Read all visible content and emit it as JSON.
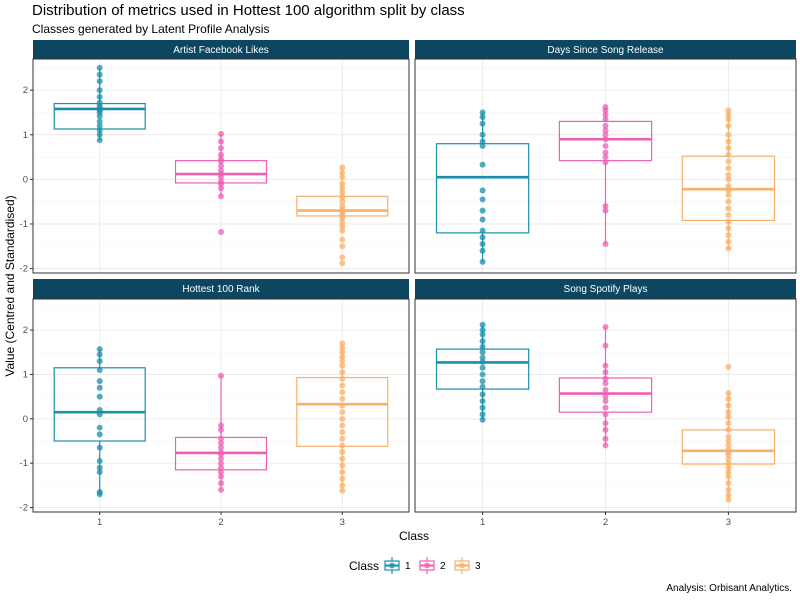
{
  "title": "Distribution of metrics used in Hottest 100 algorithm split by class",
  "subtitle": "Classes generated by Latent Profile Analysis",
  "caption": "Analysis: Orbisant Analytics.",
  "chart_data": {
    "type": "box",
    "xlabel": "Class",
    "ylabel": "Value (Centred and Standardised)",
    "categories": [
      "1",
      "2",
      "3"
    ],
    "ylim": [
      -2.1,
      2.7
    ],
    "yticks": [
      -2,
      -1,
      0,
      1,
      2
    ],
    "grid": true,
    "legend": {
      "title": "Class",
      "position": "bottom",
      "entries": [
        "1",
        "2",
        "3"
      ]
    },
    "colors": {
      "1": "#1a8fab",
      "2": "#ee5fb2",
      "3": "#f8b06a",
      "strip": "#0d4661"
    },
    "panels": [
      {
        "title": "Artist Facebook Likes",
        "boxes": [
          {
            "class": "1",
            "q1": 1.13,
            "median": 1.58,
            "q3": 1.7,
            "whisker_low": 0.88,
            "whisker_high": 2.5
          },
          {
            "class": "2",
            "q1": -0.08,
            "median": 0.12,
            "q3": 0.42,
            "whisker_low": -0.38,
            "whisker_high": 1.02
          },
          {
            "class": "3",
            "q1": -0.82,
            "median": -0.7,
            "q3": -0.38,
            "whisker_low": -1.18,
            "whisker_high": 0.27
          }
        ],
        "points": {
          "1": [
            2.5,
            2.35,
            2.2,
            2.0,
            1.85,
            1.72,
            1.65,
            1.6,
            1.55,
            1.5,
            1.42,
            1.3,
            1.2,
            1.1,
            1.0,
            0.88
          ],
          "2": [
            1.02,
            0.85,
            0.7,
            0.55,
            0.45,
            0.4,
            0.3,
            0.2,
            0.12,
            0.05,
            -0.05,
            -0.1,
            -0.2,
            -0.38,
            -1.18
          ],
          "3": [
            0.27,
            0.15,
            0.05,
            -0.1,
            -0.2,
            -0.3,
            -0.4,
            -0.5,
            -0.6,
            -0.68,
            -0.72,
            -0.78,
            -0.85,
            -0.95,
            -1.05,
            -1.15,
            -1.35,
            -1.5,
            -1.75,
            -1.88
          ]
        }
      },
      {
        "title": "Days Since Song Release",
        "boxes": [
          {
            "class": "1",
            "q1": -1.2,
            "median": 0.05,
            "q3": 0.8,
            "whisker_low": -1.85,
            "whisker_high": 1.5
          },
          {
            "class": "2",
            "q1": 0.42,
            "median": 0.9,
            "q3": 1.3,
            "whisker_low": -1.45,
            "whisker_high": 1.62
          },
          {
            "class": "3",
            "q1": -0.92,
            "median": -0.22,
            "q3": 0.52,
            "whisker_low": -1.55,
            "whisker_high": 1.55
          }
        ],
        "points": {
          "1": [
            1.5,
            1.4,
            1.25,
            1.0,
            0.85,
            0.75,
            0.33,
            -0.25,
            -0.45,
            -0.7,
            -0.9,
            -1.15,
            -1.3,
            -1.45,
            -1.6,
            -1.85
          ],
          "2": [
            1.62,
            1.55,
            1.45,
            1.35,
            1.2,
            1.1,
            1.0,
            0.9,
            0.75,
            0.6,
            0.5,
            0.38,
            -0.6,
            -0.7,
            -1.45
          ],
          "3": [
            1.55,
            1.45,
            1.35,
            1.2,
            1.0,
            0.85,
            0.7,
            0.55,
            0.4,
            0.25,
            0.1,
            0.0,
            -0.15,
            -0.25,
            -0.35,
            -0.5,
            -0.65,
            -0.8,
            -0.95,
            -1.1,
            -1.25,
            -1.4,
            -1.55
          ]
        }
      },
      {
        "title": "Hottest 100 Rank",
        "boxes": [
          {
            "class": "1",
            "q1": -0.5,
            "median": 0.15,
            "q3": 1.15,
            "whisker_low": -1.7,
            "whisker_high": 1.57
          },
          {
            "class": "2",
            "q1": -1.15,
            "median": -0.77,
            "q3": -0.42,
            "whisker_low": -1.6,
            "whisker_high": 0.97
          },
          {
            "class": "3",
            "q1": -0.62,
            "median": 0.33,
            "q3": 0.93,
            "whisker_low": -1.62,
            "whisker_high": 1.7
          }
        ],
        "points": {
          "1": [
            1.57,
            1.45,
            1.3,
            1.1,
            0.85,
            0.7,
            0.5,
            0.2,
            0.1,
            -0.2,
            -0.35,
            -0.65,
            -0.95,
            -1.1,
            -1.2,
            -1.65,
            -1.7
          ],
          "2": [
            0.97,
            -0.15,
            -0.25,
            -0.45,
            -0.55,
            -0.65,
            -0.75,
            -0.8,
            -0.9,
            -1.0,
            -1.1,
            -1.2,
            -1.3,
            -1.45,
            -1.6
          ],
          "3": [
            1.7,
            1.6,
            1.5,
            1.4,
            1.3,
            1.2,
            1.05,
            0.9,
            0.75,
            0.6,
            0.45,
            0.3,
            0.15,
            0.0,
            -0.15,
            -0.3,
            -0.45,
            -0.6,
            -0.75,
            -0.9,
            -1.05,
            -1.2,
            -1.35,
            -1.5,
            -1.62
          ]
        }
      },
      {
        "title": "Song Spotify Plays",
        "boxes": [
          {
            "class": "1",
            "q1": 0.67,
            "median": 1.27,
            "q3": 1.57,
            "whisker_low": -0.02,
            "whisker_high": 2.12
          },
          {
            "class": "2",
            "q1": 0.15,
            "median": 0.57,
            "q3": 0.92,
            "whisker_low": -0.6,
            "whisker_high": 2.07
          },
          {
            "class": "3",
            "q1": -1.02,
            "median": -0.72,
            "q3": -0.25,
            "whisker_low": -1.82,
            "whisker_high": 0.58
          }
        ],
        "points": {
          "1": [
            2.12,
            2.0,
            1.9,
            1.75,
            1.62,
            1.5,
            1.38,
            1.28,
            1.15,
            1.0,
            0.85,
            0.72,
            0.55,
            0.4,
            0.25,
            0.1,
            -0.02
          ],
          "2": [
            2.07,
            1.65,
            1.2,
            1.05,
            0.9,
            0.8,
            0.65,
            0.5,
            0.4,
            0.25,
            0.1,
            -0.1,
            -0.25,
            -0.45,
            -0.6
          ],
          "3": [
            1.17,
            0.58,
            0.45,
            0.3,
            0.15,
            0.05,
            -0.1,
            -0.25,
            -0.4,
            -0.5,
            -0.6,
            -0.7,
            -0.75,
            -0.8,
            -0.9,
            -1.0,
            -1.1,
            -1.2,
            -1.3,
            -1.45,
            -1.6,
            -1.72,
            -1.82
          ]
        }
      }
    ]
  }
}
